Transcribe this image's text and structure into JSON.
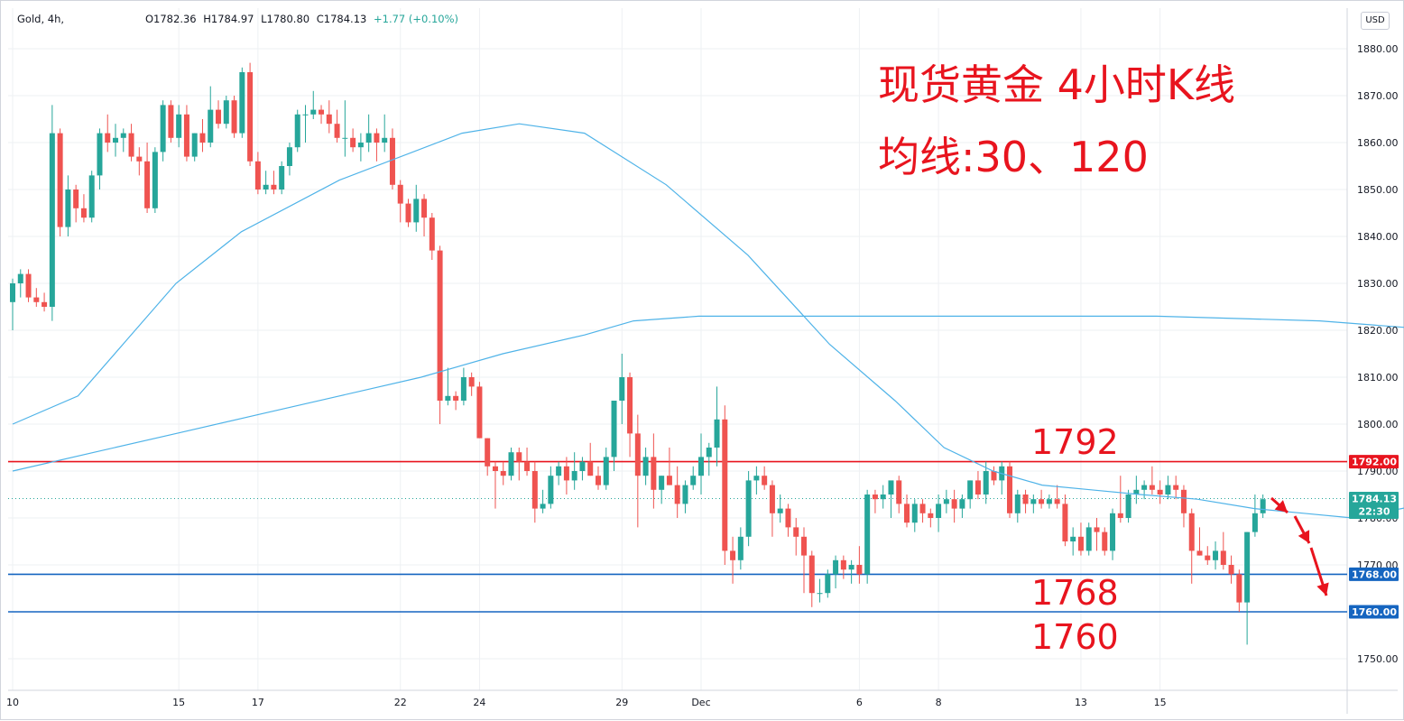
{
  "header": {
    "symbol": "Gold, 4h,",
    "open": "O1782.36",
    "high": "H1784.97",
    "low": "L1780.80",
    "close": "C1784.13",
    "change": "+1.77 (+0.10%)"
  },
  "currency_button": "USD",
  "annotations": {
    "title": "现货黄金 4小时K线",
    "subtitle": "均线:30、120",
    "level_1792": "1792",
    "level_1768": "1768",
    "level_1760": "1760"
  },
  "price_tags": {
    "p1792": "1792.00",
    "current": "1784.13",
    "countdown": "22:30",
    "p1768": "1768.00",
    "p1760": "1760.00"
  },
  "colors": {
    "up": "#26a69a",
    "down": "#ef5350",
    "ma": "#4fb3e8",
    "resistance": "#e8141e",
    "support": "#1565c0",
    "annotation": "#e8141e"
  },
  "chart_data": {
    "type": "candlestick",
    "symbol": "Gold",
    "timeframe": "4h",
    "ylim": [
      1743,
      1886
    ],
    "y_ticks": [
      "1880.00",
      "1870.00",
      "1860.00",
      "1850.00",
      "1840.00",
      "1830.00",
      "1820.00",
      "1810.00",
      "1800.00",
      "1790.00",
      "1780.00",
      "1770.00",
      "1760.00",
      "1750.00"
    ],
    "x_ticks": [
      {
        "label": "10",
        "bar": 0
      },
      {
        "label": "15",
        "bar": 21
      },
      {
        "label": "17",
        "bar": 31
      },
      {
        "label": "22",
        "bar": 49
      },
      {
        "label": "24",
        "bar": 59
      },
      {
        "label": "29",
        "bar": 77
      },
      {
        "label": "Dec",
        "bar": 87
      },
      {
        "label": "6",
        "bar": 107
      },
      {
        "label": "8",
        "bar": 117
      },
      {
        "label": "13",
        "bar": 135
      },
      {
        "label": "15",
        "bar": 145
      }
    ],
    "horizontal_lines": [
      {
        "value": 1792,
        "color": "resistance"
      },
      {
        "value": 1768,
        "color": "support"
      },
      {
        "value": 1760,
        "color": "support"
      }
    ],
    "current_price": 1784.13,
    "candles": [
      [
        1826,
        1831,
        1820,
        1830
      ],
      [
        1830,
        1833,
        1827,
        1832
      ],
      [
        1832,
        1833,
        1826,
        1827
      ],
      [
        1827,
        1829,
        1825,
        1826
      ],
      [
        1826,
        1828,
        1824,
        1825
      ],
      [
        1825,
        1868,
        1822,
        1862
      ],
      [
        1862,
        1863,
        1840,
        1842
      ],
      [
        1842,
        1853,
        1840,
        1850
      ],
      [
        1850,
        1851,
        1843,
        1846
      ],
      [
        1846,
        1849,
        1843,
        1844
      ],
      [
        1844,
        1854,
        1843,
        1853
      ],
      [
        1853,
        1863,
        1850,
        1862
      ],
      [
        1862,
        1866,
        1858,
        1860
      ],
      [
        1860,
        1864,
        1857,
        1861
      ],
      [
        1861,
        1863,
        1858,
        1862
      ],
      [
        1862,
        1864,
        1856,
        1857
      ],
      [
        1857,
        1859,
        1853,
        1856
      ],
      [
        1856,
        1860,
        1845,
        1846
      ],
      [
        1846,
        1859,
        1845,
        1858
      ],
      [
        1858,
        1869,
        1856,
        1868
      ],
      [
        1868,
        1869,
        1860,
        1861
      ],
      [
        1861,
        1868,
        1859,
        1866
      ],
      [
        1866,
        1868,
        1856,
        1857
      ],
      [
        1857,
        1862,
        1856,
        1862
      ],
      [
        1862,
        1865,
        1858,
        1860
      ],
      [
        1860,
        1872,
        1859,
        1867
      ],
      [
        1867,
        1869,
        1863,
        1864
      ],
      [
        1864,
        1870,
        1863,
        1869
      ],
      [
        1869,
        1870,
        1861,
        1862
      ],
      [
        1862,
        1876,
        1861,
        1875
      ],
      [
        1875,
        1877,
        1855,
        1856
      ],
      [
        1856,
        1858,
        1849,
        1850
      ],
      [
        1850,
        1854,
        1849,
        1851
      ],
      [
        1851,
        1854,
        1849,
        1850
      ],
      [
        1850,
        1856,
        1849,
        1855
      ],
      [
        1855,
        1860,
        1853,
        1859
      ],
      [
        1859,
        1867,
        1858,
        1866
      ],
      [
        1866,
        1868,
        1860,
        1866
      ],
      [
        1866,
        1871,
        1865,
        1867
      ],
      [
        1867,
        1868,
        1864,
        1866
      ],
      [
        1866,
        1869,
        1862,
        1864
      ],
      [
        1864,
        1867,
        1860,
        1861
      ],
      [
        1861,
        1869,
        1857,
        1861
      ],
      [
        1861,
        1863,
        1858,
        1859
      ],
      [
        1859,
        1862,
        1856,
        1860
      ],
      [
        1860,
        1866,
        1858,
        1862
      ],
      [
        1862,
        1863,
        1856,
        1860
      ],
      [
        1860,
        1866,
        1858,
        1861
      ],
      [
        1861,
        1863,
        1850,
        1851
      ],
      [
        1851,
        1852,
        1843,
        1847
      ],
      [
        1847,
        1848,
        1842,
        1843
      ],
      [
        1843,
        1851,
        1841,
        1848
      ],
      [
        1848,
        1849,
        1840,
        1844
      ],
      [
        1844,
        1845,
        1835,
        1837
      ],
      [
        1837,
        1838,
        1800,
        1805
      ],
      [
        1805,
        1812,
        1804,
        1806
      ],
      [
        1806,
        1807,
        1803,
        1805
      ],
      [
        1805,
        1812,
        1804,
        1810
      ],
      [
        1810,
        1811,
        1806,
        1808
      ],
      [
        1808,
        1809,
        1797,
        1797
      ],
      [
        1797,
        1797,
        1789,
        1791
      ],
      [
        1791,
        1792,
        1782,
        1790
      ],
      [
        1790,
        1792,
        1787,
        1789
      ],
      [
        1789,
        1795,
        1788,
        1794
      ],
      [
        1794,
        1795,
        1788,
        1792
      ],
      [
        1792,
        1795,
        1789,
        1790
      ],
      [
        1790,
        1792,
        1779,
        1782
      ],
      [
        1782,
        1786,
        1781,
        1783
      ],
      [
        1783,
        1791,
        1782,
        1789
      ],
      [
        1789,
        1792,
        1787,
        1791
      ],
      [
        1791,
        1793,
        1785,
        1788
      ],
      [
        1788,
        1794,
        1786,
        1790
      ],
      [
        1790,
        1793,
        1788,
        1792
      ],
      [
        1792,
        1796,
        1789,
        1789
      ],
      [
        1789,
        1791,
        1786,
        1787
      ],
      [
        1787,
        1795,
        1786,
        1793
      ],
      [
        1793,
        1805,
        1790,
        1805
      ],
      [
        1805,
        1815,
        1800,
        1810
      ],
      [
        1810,
        1811,
        1793,
        1798
      ],
      [
        1798,
        1802,
        1778,
        1789
      ],
      [
        1789,
        1795,
        1787,
        1793
      ],
      [
        1793,
        1798,
        1782,
        1786
      ],
      [
        1786,
        1789,
        1783,
        1789
      ],
      [
        1789,
        1795,
        1787,
        1787
      ],
      [
        1787,
        1791,
        1780,
        1783
      ],
      [
        1783,
        1788,
        1781,
        1787
      ],
      [
        1787,
        1791,
        1786,
        1789
      ],
      [
        1789,
        1798,
        1785,
        1793
      ],
      [
        1793,
        1796,
        1789,
        1795
      ],
      [
        1795,
        1808,
        1791,
        1801
      ],
      [
        1801,
        1804,
        1770,
        1773
      ],
      [
        1773,
        1776,
        1766,
        1771
      ],
      [
        1771,
        1778,
        1769,
        1776
      ],
      [
        1776,
        1790,
        1774,
        1788
      ],
      [
        1788,
        1791,
        1785,
        1789
      ],
      [
        1789,
        1791,
        1786,
        1787
      ],
      [
        1787,
        1788,
        1776,
        1781
      ],
      [
        1781,
        1785,
        1779,
        1782
      ],
      [
        1782,
        1783,
        1776,
        1778
      ],
      [
        1778,
        1780,
        1772,
        1776
      ],
      [
        1776,
        1778,
        1764,
        1772
      ],
      [
        1772,
        1773,
        1761,
        1764
      ],
      [
        1764,
        1767,
        1762,
        1764
      ],
      [
        1764,
        1769,
        1763,
        1768
      ],
      [
        1768,
        1772,
        1765,
        1771
      ],
      [
        1771,
        1772,
        1767,
        1769
      ],
      [
        1769,
        1771,
        1766,
        1770
      ],
      [
        1770,
        1774,
        1766,
        1768
      ],
      [
        1768,
        1786,
        1766,
        1785
      ],
      [
        1785,
        1786,
        1781,
        1784
      ],
      [
        1784,
        1787,
        1782,
        1785
      ],
      [
        1785,
        1787,
        1780,
        1788
      ],
      [
        1788,
        1789,
        1781,
        1783
      ],
      [
        1783,
        1785,
        1778,
        1779
      ],
      [
        1779,
        1784,
        1777,
        1783
      ],
      [
        1783,
        1784,
        1779,
        1781
      ],
      [
        1781,
        1782,
        1778,
        1780
      ],
      [
        1780,
        1785,
        1777,
        1783
      ],
      [
        1783,
        1786,
        1781,
        1784
      ],
      [
        1784,
        1786,
        1779,
        1782
      ],
      [
        1782,
        1785,
        1780,
        1784
      ],
      [
        1784,
        1788,
        1782,
        1788
      ],
      [
        1788,
        1790,
        1784,
        1785
      ],
      [
        1785,
        1792,
        1783,
        1790
      ],
      [
        1790,
        1791,
        1787,
        1788
      ],
      [
        1788,
        1792,
        1785,
        1791
      ],
      [
        1791,
        1792,
        1780,
        1781
      ],
      [
        1781,
        1786,
        1779,
        1785
      ],
      [
        1785,
        1786,
        1781,
        1783
      ],
      [
        1783,
        1785,
        1781,
        1784
      ],
      [
        1784,
        1786,
        1782,
        1783
      ],
      [
        1783,
        1785,
        1782,
        1784
      ],
      [
        1784,
        1787,
        1782,
        1783
      ],
      [
        1783,
        1785,
        1774,
        1775
      ],
      [
        1775,
        1778,
        1772,
        1776
      ],
      [
        1776,
        1779,
        1772,
        1773
      ],
      [
        1773,
        1779,
        1772,
        1778
      ],
      [
        1778,
        1780,
        1773,
        1777
      ],
      [
        1777,
        1778,
        1772,
        1773
      ],
      [
        1773,
        1782,
        1771,
        1781
      ],
      [
        1781,
        1789,
        1779,
        1780
      ],
      [
        1780,
        1786,
        1779,
        1785
      ],
      [
        1785,
        1789,
        1783,
        1786
      ],
      [
        1786,
        1788,
        1784,
        1787
      ],
      [
        1787,
        1791,
        1785,
        1786
      ],
      [
        1786,
        1788,
        1783,
        1785
      ],
      [
        1785,
        1789,
        1784,
        1787
      ],
      [
        1787,
        1789,
        1784,
        1786
      ],
      [
        1786,
        1787,
        1778,
        1781
      ],
      [
        1781,
        1782,
        1766,
        1773
      ],
      [
        1773,
        1778,
        1772,
        1772
      ],
      [
        1772,
        1774,
        1770,
        1771
      ],
      [
        1771,
        1775,
        1769,
        1773
      ],
      [
        1773,
        1777,
        1769,
        1770
      ],
      [
        1770,
        1772,
        1766,
        1768
      ],
      [
        1768,
        1769,
        1760,
        1762
      ],
      [
        1762,
        1777,
        1753,
        1777
      ],
      [
        1777,
        1785,
        1776,
        1781
      ],
      [
        1781,
        1785,
        1780,
        1784
      ]
    ],
    "series": [
      {
        "values": [
          [
            0,
            1800
          ],
          [
            8,
            1806
          ],
          [
            14,
            1818
          ],
          [
            20,
            1830
          ],
          [
            28,
            1841
          ],
          [
            40,
            1852
          ],
          [
            55,
            1862
          ],
          [
            62,
            1864
          ],
          [
            70,
            1862
          ],
          [
            80,
            1851
          ],
          [
            90,
            1836
          ],
          [
            100,
            1817
          ],
          [
            108,
            1805
          ],
          [
            114,
            1795
          ],
          [
            120,
            1790
          ],
          [
            126,
            1787
          ],
          [
            132,
            1786
          ],
          [
            138,
            1785
          ],
          [
            145,
            1784
          ],
          [
            152,
            1782
          ],
          [
            158,
            1781
          ],
          [
            164,
            1780
          ],
          [
            170,
            1782
          ],
          [
            176,
            1784
          ],
          [
            182,
            1783
          ],
          [
            188,
            1781
          ],
          [
            194,
            1780
          ],
          [
            200,
            1781
          ],
          [
            206,
            1782
          ],
          [
            212,
            1785
          ],
          [
            218,
            1786
          ],
          [
            224,
            1785
          ],
          [
            230,
            1782
          ],
          [
            236,
            1779
          ]
        ]
      },
      {
        "values": [
          [
            0,
            1790
          ],
          [
            10,
            1794
          ],
          [
            20,
            1798
          ],
          [
            30,
            1802
          ],
          [
            40,
            1806
          ],
          [
            50,
            1810
          ],
          [
            60,
            1815
          ],
          [
            70,
            1819
          ],
          [
            76,
            1822
          ],
          [
            84,
            1823
          ],
          [
            110,
            1823
          ],
          [
            140,
            1823
          ],
          [
            160,
            1822
          ],
          [
            175,
            1820
          ],
          [
            190,
            1817
          ],
          [
            205,
            1812
          ],
          [
            220,
            1806
          ],
          [
            232,
            1800
          ],
          [
            240,
            1793
          ]
        ]
      }
    ],
    "ma_bar_scale": 154
  }
}
